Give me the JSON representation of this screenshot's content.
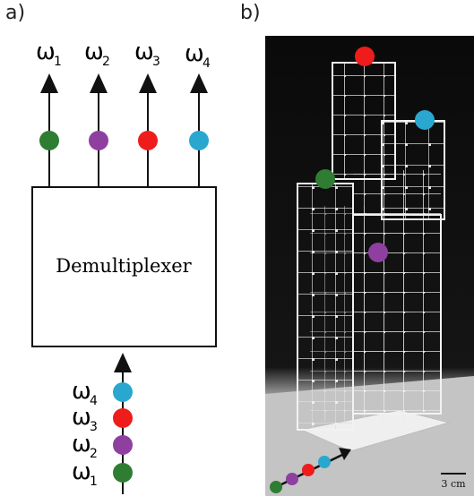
{
  "panels": {
    "a": {
      "label": "a)",
      "box_label": "Demultiplexer",
      "outputs": [
        {
          "symbol": "ω",
          "sub": "1",
          "color": "#2e7d32"
        },
        {
          "symbol": "ω",
          "sub": "2",
          "color": "#8e3fa0"
        },
        {
          "symbol": "ω",
          "sub": "3",
          "color": "#ef1c1c"
        },
        {
          "symbol": "ω",
          "sub": "4",
          "color": "#29a7cf"
        }
      ],
      "inputs": [
        {
          "symbol": "ω",
          "sub": "4",
          "color": "#29a7cf"
        },
        {
          "symbol": "ω",
          "sub": "3",
          "color": "#ef1c1c"
        },
        {
          "symbol": "ω",
          "sub": "2",
          "color": "#8e3fa0"
        },
        {
          "symbol": "ω",
          "sub": "1",
          "color": "#2e7d32"
        }
      ]
    },
    "b": {
      "label": "b)",
      "scale_bar": "3 cm"
    }
  },
  "colors": {
    "green": "#2e7d32",
    "purple": "#8e3fa0",
    "red": "#ef1c1c",
    "cyan": "#29a7cf"
  }
}
